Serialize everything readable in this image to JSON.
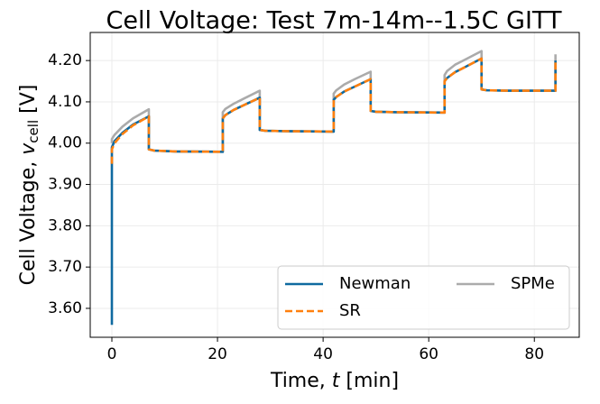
{
  "chart_data": {
    "type": "line",
    "title": "Cell Voltage: Test 7m-14m--1.5C GITT",
    "xlabel": {
      "text": "Time, ",
      "symbol": "t",
      "unit": " [min]"
    },
    "ylabel": {
      "text": "Cell Voltage, ",
      "symbol": "v",
      "subscript": "cell",
      "unit": " [V]"
    },
    "x": [
      0,
      0,
      0.5,
      2,
      4,
      7,
      7,
      8,
      12,
      21,
      21,
      21.5,
      23,
      25,
      28,
      28,
      29,
      33,
      42,
      42,
      42.5,
      44,
      46,
      49,
      49,
      50,
      54,
      63,
      63,
      63.5,
      65,
      67,
      70,
      70,
      71,
      75,
      84,
      84
    ],
    "series": [
      {
        "name": "Newman",
        "color": "#0f6aa0",
        "dash": false,
        "values": [
          3.56,
          3.99,
          4.005,
          4.025,
          4.045,
          4.065,
          3.985,
          3.982,
          3.98,
          3.979,
          4.06,
          4.068,
          4.08,
          4.092,
          4.11,
          4.032,
          4.03,
          4.029,
          4.028,
          4.105,
          4.112,
          4.125,
          4.137,
          4.155,
          4.078,
          4.076,
          4.075,
          4.074,
          4.15,
          4.158,
          4.172,
          4.185,
          4.205,
          4.13,
          4.128,
          4.127,
          4.127,
          4.2
        ]
      },
      {
        "name": "SR",
        "color": "#ff800e",
        "dash": true,
        "values": [
          3.95,
          3.985,
          4.0,
          4.022,
          4.043,
          4.065,
          3.985,
          3.982,
          3.98,
          3.979,
          4.06,
          4.068,
          4.08,
          4.092,
          4.11,
          4.032,
          4.03,
          4.029,
          4.028,
          4.105,
          4.112,
          4.125,
          4.137,
          4.155,
          4.078,
          4.076,
          4.075,
          4.074,
          4.15,
          4.158,
          4.172,
          4.185,
          4.205,
          4.13,
          4.128,
          4.127,
          4.127,
          4.2
        ]
      },
      {
        "name": "SPMe",
        "color": "#ababab",
        "dash": false,
        "values": [
          4.0,
          4.01,
          4.02,
          4.04,
          4.06,
          4.082,
          3.985,
          3.982,
          3.98,
          3.979,
          4.075,
          4.083,
          4.095,
          4.108,
          4.127,
          4.032,
          4.03,
          4.029,
          4.028,
          4.12,
          4.128,
          4.142,
          4.155,
          4.173,
          4.078,
          4.076,
          4.075,
          4.074,
          4.165,
          4.175,
          4.19,
          4.203,
          4.223,
          4.13,
          4.128,
          4.127,
          4.127,
          4.215
        ]
      }
    ],
    "xlim": [
      -4.1,
      88.5
    ],
    "ylim": [
      3.53,
      4.268
    ],
    "xticks": [
      0,
      20,
      40,
      60,
      80
    ],
    "yticks": [
      {
        "value": 3.6,
        "label": "3.60"
      },
      {
        "value": 3.7,
        "label": "3.70"
      },
      {
        "value": 3.8,
        "label": "3.80"
      },
      {
        "value": 3.9,
        "label": "3.90"
      },
      {
        "value": 4.0,
        "label": "4.00"
      },
      {
        "value": 4.1,
        "label": "4.10"
      },
      {
        "value": 4.2,
        "label": "4.20"
      }
    ],
    "grid": true,
    "legend": "lower right"
  }
}
